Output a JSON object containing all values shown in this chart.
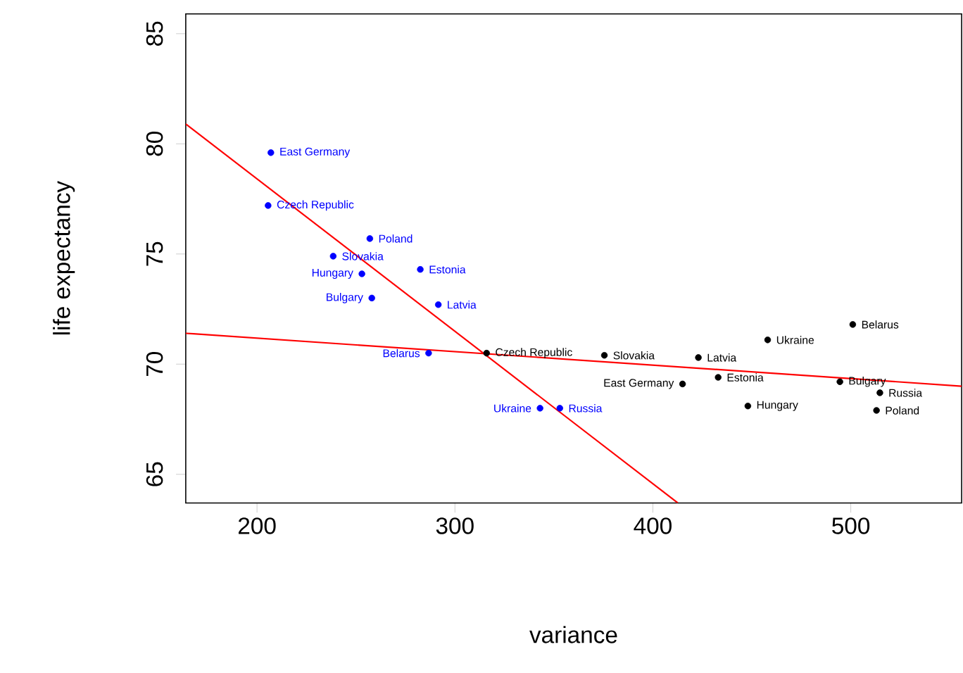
{
  "chart_data": {
    "type": "scatter",
    "xlabel": "variance",
    "ylabel": "life expectancy",
    "xlim": [
      164,
      556
    ],
    "ylim": [
      63.7,
      85.9
    ],
    "xticks": [
      200,
      300,
      400,
      500
    ],
    "yticks": [
      65,
      70,
      75,
      80,
      85
    ],
    "grid": false,
    "marker": "circle",
    "series": [
      {
        "type": "scatter",
        "color": "#0000ff",
        "x": [
          207,
          205.6,
          257,
          238.5,
          253,
          282.5,
          258,
          291.6,
          286.7,
          343,
          353
        ],
        "values": [
          79.6,
          77.2,
          75.7,
          74.9,
          74.1,
          74.3,
          73.0,
          72.7,
          70.5,
          68.0,
          68.0
        ]
      },
      {
        "type": "scatter",
        "color": "#000000",
        "x": [
          316,
          375.5,
          423,
          458,
          501,
          415,
          433,
          494.5,
          514.7,
          448,
          513
        ],
        "values": [
          70.5,
          70.4,
          70.3,
          71.1,
          71.8,
          69.1,
          69.4,
          69.2,
          68.7,
          68.1,
          67.9
        ]
      },
      {
        "type": "line",
        "color": "#ff0000",
        "line_style": "solid",
        "marker": "none",
        "x": [
          164,
          412.6
        ],
        "values": [
          80.9,
          63.7
        ]
      },
      {
        "type": "line",
        "color": "#ff0000",
        "line_style": "solid",
        "marker": "none",
        "x": [
          164,
          556
        ],
        "values": [
          71.4,
          69.0
        ]
      }
    ],
    "annotations": [
      {
        "text": "East Germany",
        "x": 207,
        "y": 79.6
      },
      {
        "text": "Czech Republic",
        "x": 205.6,
        "y": 77.2
      },
      {
        "text": "Poland",
        "x": 257,
        "y": 75.7
      },
      {
        "text": "Slovakia",
        "x": 238.5,
        "y": 74.9
      },
      {
        "text": "Hungary",
        "x": 253,
        "y": 74.1
      },
      {
        "text": "Estonia",
        "x": 282.5,
        "y": 74.3
      },
      {
        "text": "Bulgary",
        "x": 258,
        "y": 73.0
      },
      {
        "text": "Latvia",
        "x": 291.6,
        "y": 72.7
      },
      {
        "text": "Belarus",
        "x": 286.7,
        "y": 70.5
      },
      {
        "text": "Ukraine",
        "x": 343,
        "y": 68.0
      },
      {
        "text": "Russia",
        "x": 353,
        "y": 68.0
      },
      {
        "text": "Czech Republic",
        "x": 316,
        "y": 70.5
      },
      {
        "text": "Slovakia",
        "x": 375.5,
        "y": 70.4
      },
      {
        "text": "Latvia",
        "x": 423,
        "y": 70.3
      },
      {
        "text": "Ukraine",
        "x": 458,
        "y": 71.1
      },
      {
        "text": "Belarus",
        "x": 501,
        "y": 71.8
      },
      {
        "text": "East Germany",
        "x": 415,
        "y": 69.1
      },
      {
        "text": "Estonia",
        "x": 433,
        "y": 69.4
      },
      {
        "text": "Bulgary",
        "x": 494.5,
        "y": 69.2
      },
      {
        "text": "Russia",
        "x": 514.7,
        "y": 68.7
      },
      {
        "text": "Hungary",
        "x": 448,
        "y": 68.1
      },
      {
        "text": "Poland",
        "x": 513,
        "y": 67.9
      }
    ]
  }
}
